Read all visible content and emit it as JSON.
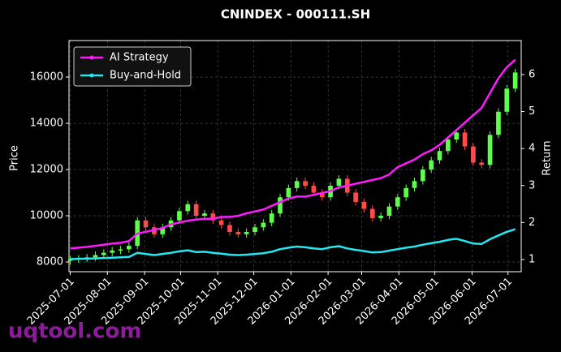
{
  "chart_data": {
    "type": "candlestick",
    "title": "CNINDEX - 000111.SH",
    "ylabel": "Price",
    "y2label": "Return",
    "watermark": "uqtool.com",
    "x": [
      "2025-07-01",
      "2025-07-08",
      "2025-07-15",
      "2025-07-22",
      "2025-07-29",
      "2025-08-05",
      "2025-08-12",
      "2025-08-19",
      "2025-08-26",
      "2025-09-02",
      "2025-09-09",
      "2025-09-16",
      "2025-09-23",
      "2025-09-30",
      "2025-10-07",
      "2025-10-14",
      "2025-10-21",
      "2025-10-28",
      "2025-11-04",
      "2025-11-11",
      "2025-11-18",
      "2025-11-25",
      "2025-12-02",
      "2025-12-09",
      "2025-12-16",
      "2025-12-23",
      "2025-12-30",
      "2026-01-06",
      "2026-01-13",
      "2026-01-20",
      "2026-01-27",
      "2026-02-03",
      "2026-02-10",
      "2026-02-17",
      "2026-02-24",
      "2026-03-03",
      "2026-03-10",
      "2026-03-17",
      "2026-03-24",
      "2026-03-31",
      "2026-04-07",
      "2026-04-14",
      "2026-04-21",
      "2026-04-28",
      "2026-05-05",
      "2026-05-12",
      "2026-05-19",
      "2026-05-26",
      "2026-06-02",
      "2026-06-09",
      "2026-06-16",
      "2026-06-23",
      "2026-06-30",
      "2026-07-07"
    ],
    "open": [
      8050,
      8100,
      8150,
      8200,
      8300,
      8400,
      8500,
      8550,
      8700,
      9800,
      9500,
      9200,
      9500,
      9800,
      10200,
      10500,
      10000,
      10100,
      9800,
      9600,
      9300,
      9200,
      9300,
      9500,
      9700,
      10100,
      10800,
      11200,
      11500,
      11300,
      11000,
      10800,
      11300,
      11600,
      11000,
      10600,
      10300,
      9900,
      10000,
      10400,
      10800,
      11200,
      11500,
      12000,
      12400,
      12800,
      13300,
      13600,
      13000,
      12300,
      12200,
      13500,
      14500,
      15500
    ],
    "high": [
      8250,
      8300,
      8350,
      8450,
      8550,
      8650,
      8700,
      8850,
      9950,
      9950,
      9650,
      9650,
      9950,
      10350,
      10650,
      10650,
      10250,
      10250,
      9950,
      9750,
      9450,
      9450,
      9650,
      9850,
      10250,
      10950,
      11350,
      11650,
      11650,
      11450,
      11150,
      11450,
      11750,
      11750,
      11150,
      10750,
      10450,
      10150,
      10550,
      10950,
      11350,
      11650,
      12150,
      12550,
      12950,
      13450,
      13750,
      13750,
      13150,
      12450,
      13650,
      14650,
      15650,
      16350
    ],
    "low": [
      7900,
      7950,
      8000,
      8050,
      8150,
      8250,
      8350,
      8400,
      8550,
      9350,
      9050,
      9050,
      9350,
      9650,
      10050,
      9850,
      9850,
      9650,
      9450,
      9150,
      9050,
      9050,
      9150,
      9350,
      9550,
      9950,
      10650,
      11050,
      11150,
      10850,
      10650,
      10650,
      11150,
      10850,
      10450,
      10150,
      9750,
      9750,
      9850,
      10250,
      10650,
      11050,
      11350,
      11850,
      12250,
      12650,
      13150,
      12850,
      12150,
      12050,
      12050,
      13350,
      14350,
      15350
    ],
    "close": [
      8100,
      8150,
      8200,
      8300,
      8400,
      8500,
      8550,
      8700,
      9800,
      9500,
      9200,
      9500,
      9800,
      10200,
      10500,
      10000,
      10100,
      9800,
      9600,
      9300,
      9200,
      9300,
      9500,
      9700,
      10100,
      10800,
      11200,
      11500,
      11300,
      11000,
      10800,
      11300,
      11600,
      11000,
      10600,
      10300,
      9900,
      10000,
      10400,
      10800,
      11200,
      11500,
      12000,
      12400,
      12800,
      13300,
      13600,
      13000,
      12300,
      12200,
      13500,
      14500,
      15500,
      16200
    ],
    "up_color": "#5cff4a",
    "down_color": "#ff4b4b",
    "series": [
      {
        "name": "AI Strategy",
        "color": "#ff1aff",
        "axis": "y2",
        "values": [
          1.3,
          1.32,
          1.34,
          1.37,
          1.4,
          1.43,
          1.45,
          1.5,
          1.7,
          1.75,
          1.8,
          1.85,
          1.95,
          2.0,
          2.05,
          2.08,
          2.1,
          2.1,
          2.15,
          2.15,
          2.18,
          2.25,
          2.3,
          2.35,
          2.45,
          2.55,
          2.65,
          2.7,
          2.7,
          2.75,
          2.8,
          2.85,
          2.95,
          3.0,
          3.05,
          3.1,
          3.15,
          3.2,
          3.3,
          3.5,
          3.6,
          3.7,
          3.85,
          3.95,
          4.1,
          4.3,
          4.5,
          4.7,
          4.9,
          5.1,
          5.5,
          5.9,
          6.2,
          6.4
        ]
      },
      {
        "name": "Buy-and-Hold",
        "color": "#22e8f0",
        "axis": "y2",
        "values": [
          1.01,
          1.02,
          1.02,
          1.03,
          1.04,
          1.05,
          1.06,
          1.07,
          1.18,
          1.15,
          1.12,
          1.15,
          1.18,
          1.22,
          1.25,
          1.2,
          1.21,
          1.18,
          1.16,
          1.13,
          1.12,
          1.13,
          1.15,
          1.17,
          1.21,
          1.28,
          1.32,
          1.35,
          1.33,
          1.3,
          1.28,
          1.33,
          1.36,
          1.3,
          1.26,
          1.23,
          1.19,
          1.2,
          1.24,
          1.28,
          1.32,
          1.35,
          1.4,
          1.44,
          1.48,
          1.53,
          1.56,
          1.5,
          1.43,
          1.42,
          1.55,
          1.65,
          1.75,
          1.82
        ]
      }
    ],
    "xlim": [
      "2025-06-30",
      "2026-07-12"
    ],
    "xticks": [
      "2025-07-01",
      "2025-08-01",
      "2025-09-01",
      "2025-10-01",
      "2025-11-01",
      "2025-12-01",
      "2026-01-01",
      "2026-02-01",
      "2026-03-01",
      "2026-04-01",
      "2026-05-01",
      "2026-06-01",
      "2026-07-01"
    ],
    "ylim": [
      7580,
      17580
    ],
    "yticks": [
      8000,
      10000,
      12000,
      14000,
      16000
    ],
    "y2lim": [
      0.67,
      6.92
    ],
    "y2ticks": [
      1,
      2,
      3,
      4,
      5,
      6
    ],
    "grid": true,
    "legend": "upper left"
  }
}
